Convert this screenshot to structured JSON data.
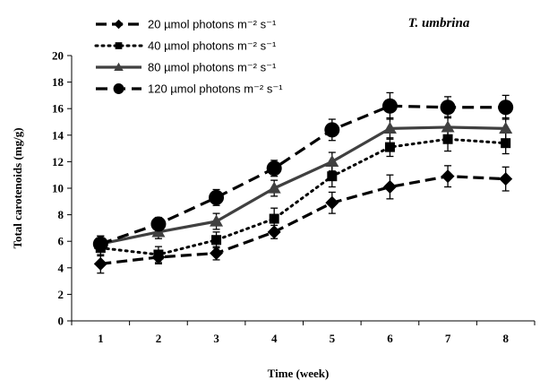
{
  "chart_data": {
    "type": "line",
    "title": "T. umbrina",
    "xlabel": "Time (week)",
    "ylabel": "Total carotenoids (mg/g)",
    "x": [
      1,
      2,
      3,
      4,
      5,
      6,
      7,
      8
    ],
    "x_tick_labels": [
      "1",
      "2",
      "3",
      "4",
      "5",
      "6",
      "7",
      "8"
    ],
    "ylim": [
      0,
      20
    ],
    "y_ticks": [
      0,
      2,
      4,
      6,
      8,
      10,
      12,
      14,
      16,
      18,
      20
    ],
    "grid": false,
    "legend_position": "top-left",
    "series": [
      {
        "name": "20 µmol photons m⁻² s⁻¹",
        "line_style": "dash",
        "marker": "diamond",
        "values": [
          4.3,
          4.8,
          5.1,
          6.7,
          8.9,
          10.1,
          10.9,
          10.7
        ],
        "errors": [
          0.7,
          0.5,
          0.5,
          0.5,
          0.8,
          0.9,
          0.8,
          0.9
        ]
      },
      {
        "name": "40 µmol photons m⁻² s⁻¹",
        "line_style": "dot",
        "marker": "square",
        "values": [
          5.5,
          5.0,
          6.1,
          7.7,
          10.9,
          13.1,
          13.7,
          13.4
        ],
        "errors": [
          0.6,
          0.6,
          0.6,
          0.8,
          0.8,
          0.7,
          0.9,
          0.8
        ]
      },
      {
        "name": "80 µmol photons m⁻² s⁻¹",
        "line_style": "solid",
        "marker": "triangle",
        "values": [
          5.8,
          6.7,
          7.5,
          10.0,
          12.0,
          14.5,
          14.6,
          14.5
        ],
        "errors": [
          0.6,
          0.5,
          0.6,
          0.6,
          0.7,
          0.8,
          0.8,
          0.8
        ]
      },
      {
        "name": "120 µmol photons m⁻² s⁻¹",
        "line_style": "longdash",
        "marker": "circle",
        "values": [
          5.8,
          7.3,
          9.3,
          11.5,
          14.4,
          16.2,
          16.1,
          16.1
        ],
        "errors": [
          0.6,
          0.5,
          0.6,
          0.6,
          0.8,
          1.0,
          0.8,
          0.9
        ]
      }
    ]
  }
}
